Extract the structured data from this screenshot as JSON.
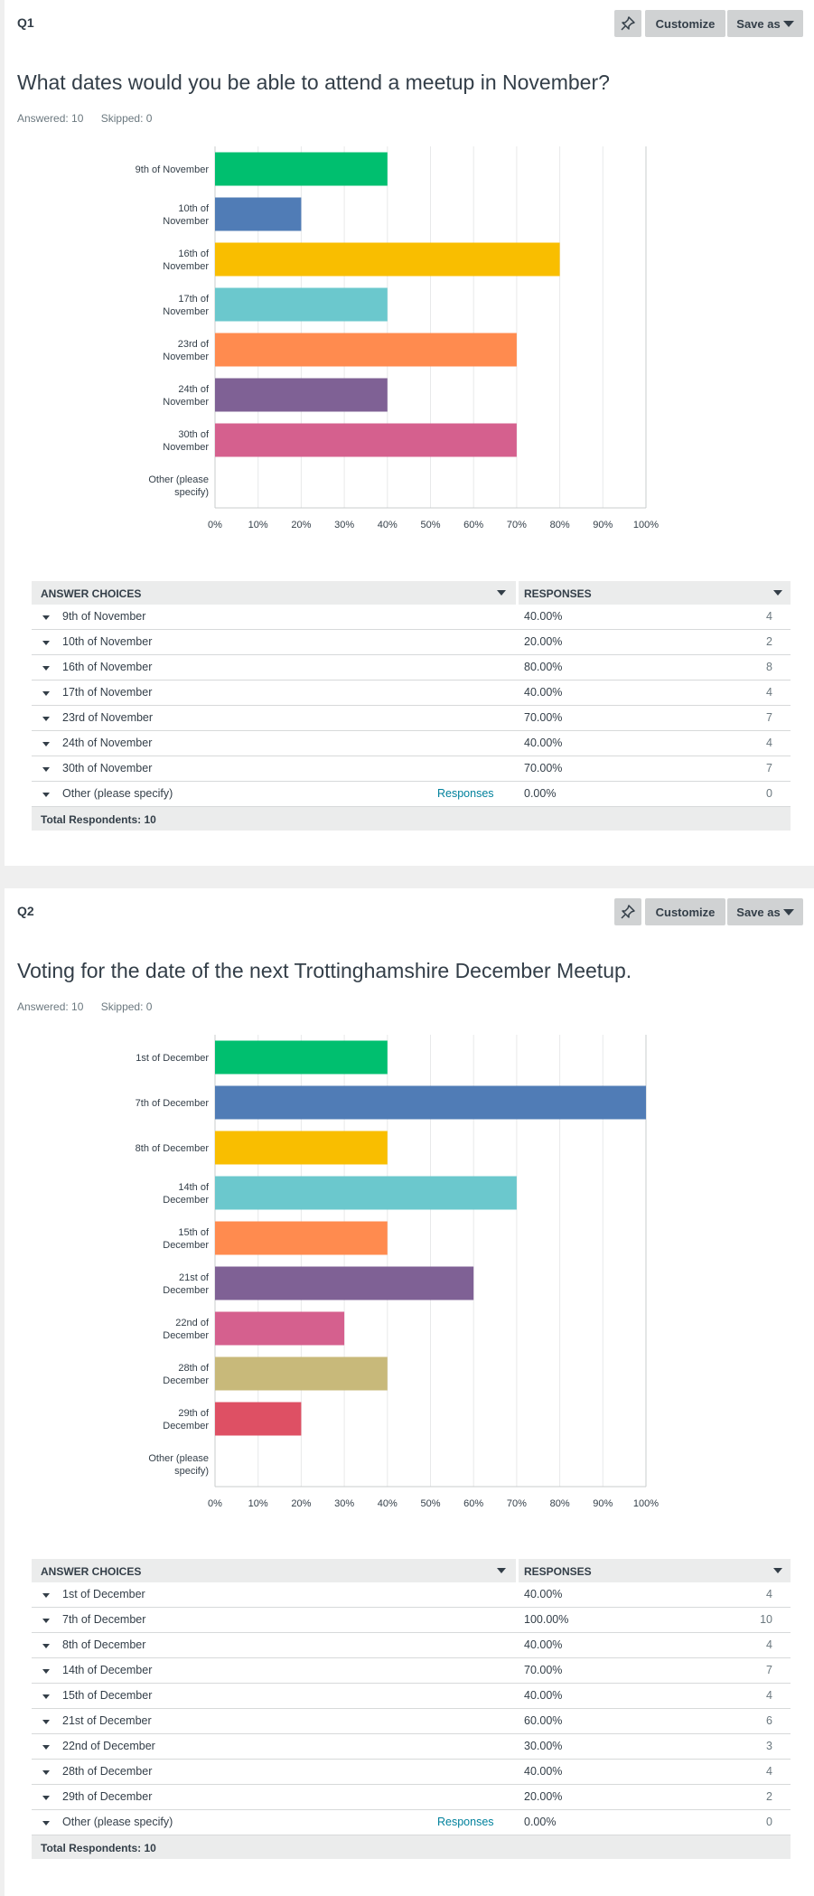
{
  "actions": {
    "pin_icon": "pin-icon",
    "customize_label": "Customize",
    "save_as_label": "Save as"
  },
  "questions": [
    {
      "label": "Q1",
      "title": "What dates would you be able to attend a meetup in November?",
      "answered_text": "Answered: 10",
      "skipped_text": "Skipped: 0",
      "table": {
        "col_choices": "ANSWER CHOICES",
        "col_responses": "RESPONSES",
        "rows": [
          {
            "label": "9th of November",
            "pct": "40.00%",
            "count": "4"
          },
          {
            "label": "10th of November",
            "pct": "20.00%",
            "count": "2"
          },
          {
            "label": "16th of November",
            "pct": "80.00%",
            "count": "8"
          },
          {
            "label": "17th of November",
            "pct": "40.00%",
            "count": "4"
          },
          {
            "label": "23rd of November",
            "pct": "70.00%",
            "count": "7"
          },
          {
            "label": "24th of November",
            "pct": "40.00%",
            "count": "4"
          },
          {
            "label": "30th of November",
            "pct": "70.00%",
            "count": "7"
          },
          {
            "label": "Other (please specify)",
            "responses_link": "Responses",
            "pct": "0.00%",
            "count": "0"
          }
        ],
        "total": "Total Respondents: 10"
      }
    },
    {
      "label": "Q2",
      "title": "Voting for the date of the next Trottinghamshire December Meetup.",
      "answered_text": "Answered: 10",
      "skipped_text": "Skipped: 0",
      "table": {
        "col_choices": "ANSWER CHOICES",
        "col_responses": "RESPONSES",
        "rows": [
          {
            "label": "1st of December",
            "pct": "40.00%",
            "count": "4"
          },
          {
            "label": "7th of December",
            "pct": "100.00%",
            "count": "10"
          },
          {
            "label": "8th of December",
            "pct": "40.00%",
            "count": "4"
          },
          {
            "label": "14th of December",
            "pct": "70.00%",
            "count": "7"
          },
          {
            "label": "15th of December",
            "pct": "40.00%",
            "count": "4"
          },
          {
            "label": "21st of December",
            "pct": "60.00%",
            "count": "6"
          },
          {
            "label": "22nd of December",
            "pct": "30.00%",
            "count": "3"
          },
          {
            "label": "28th of December",
            "pct": "40.00%",
            "count": "4"
          },
          {
            "label": "29th of December",
            "pct": "20.00%",
            "count": "2"
          },
          {
            "label": "Other (please specify)",
            "responses_link": "Responses",
            "pct": "0.00%",
            "count": "0"
          }
        ],
        "total": "Total Respondents: 10"
      }
    }
  ],
  "chart_data": [
    {
      "type": "bar",
      "orientation": "horizontal",
      "categories": [
        [
          "9th of November"
        ],
        [
          "10th of",
          "November"
        ],
        [
          "16th of",
          "November"
        ],
        [
          "17th of",
          "November"
        ],
        [
          "23rd of",
          "November"
        ],
        [
          "24th of",
          "November"
        ],
        [
          "30th of",
          "November"
        ],
        [
          "Other (please",
          "specify)"
        ]
      ],
      "values": [
        40,
        20,
        80,
        40,
        70,
        40,
        70,
        0
      ],
      "colors": [
        "#00bf6f",
        "#507cb6",
        "#f9be00",
        "#6bc8cd",
        "#ff8b4f",
        "#7f6195",
        "#d5608e",
        "#c8b97a"
      ],
      "xlim": [
        0,
        100
      ],
      "xticks": [
        "0%",
        "10%",
        "20%",
        "30%",
        "40%",
        "50%",
        "60%",
        "70%",
        "80%",
        "90%",
        "100%"
      ],
      "grid": true
    },
    {
      "type": "bar",
      "orientation": "horizontal",
      "categories": [
        [
          "1st of December"
        ],
        [
          "7th of December"
        ],
        [
          "8th of December"
        ],
        [
          "14th of",
          "December"
        ],
        [
          "15th of",
          "December"
        ],
        [
          "21st of",
          "December"
        ],
        [
          "22nd of",
          "December"
        ],
        [
          "28th of",
          "December"
        ],
        [
          "29th of",
          "December"
        ],
        [
          "Other (please",
          "specify)"
        ]
      ],
      "values": [
        40,
        100,
        40,
        70,
        40,
        60,
        30,
        40,
        20,
        0
      ],
      "colors": [
        "#00bf6f",
        "#507cb6",
        "#f9be00",
        "#6bc8cd",
        "#ff8b4f",
        "#7f6195",
        "#d5608e",
        "#c8b97a",
        "#de5064",
        "#999999"
      ],
      "xlim": [
        0,
        100
      ],
      "xticks": [
        "0%",
        "10%",
        "20%",
        "30%",
        "40%",
        "50%",
        "60%",
        "70%",
        "80%",
        "90%",
        "100%"
      ],
      "grid": true
    }
  ]
}
